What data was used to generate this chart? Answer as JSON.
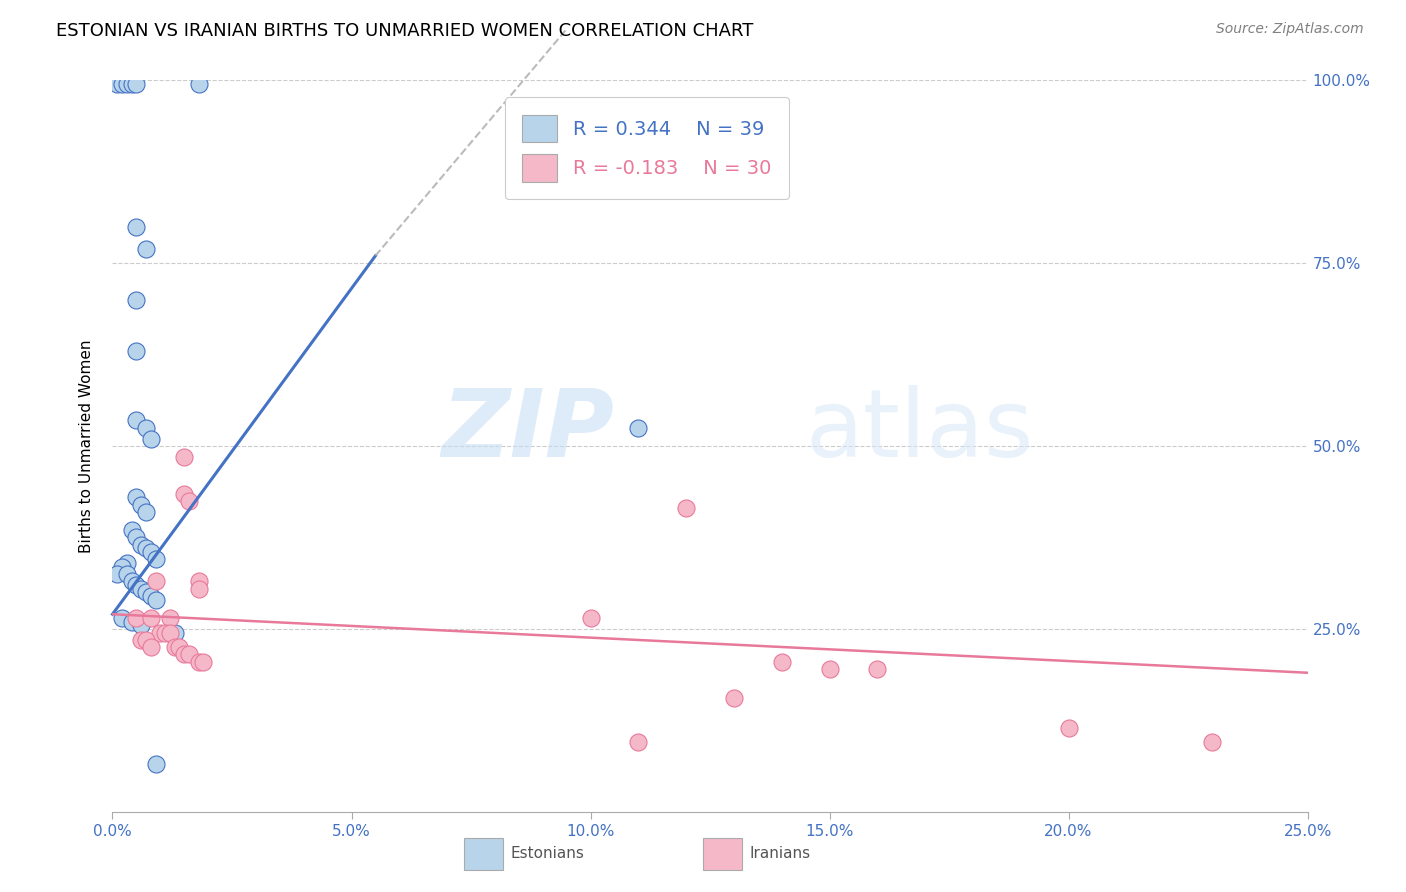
{
  "title": "ESTONIAN VS IRANIAN BIRTHS TO UNMARRIED WOMEN CORRELATION CHART",
  "source": "Source: ZipAtlas.com",
  "ylabel": "Births to Unmarried Women",
  "xlabel": "",
  "xlim": [
    0.0,
    0.25
  ],
  "ylim": [
    0.0,
    1.0
  ],
  "xtick_labels": [
    "0.0%",
    "5.0%",
    "10.0%",
    "15.0%",
    "20.0%",
    "25.0%"
  ],
  "xtick_vals": [
    0.0,
    0.05,
    0.1,
    0.15,
    0.2,
    0.25
  ],
  "ytick_labels": [
    "25.0%",
    "50.0%",
    "75.0%",
    "100.0%"
  ],
  "ytick_vals": [
    0.25,
    0.5,
    0.75,
    1.0
  ],
  "legend_r_estonian": "R = 0.344",
  "legend_n_estonian": "N = 39",
  "legend_r_iranian": "R = -0.183",
  "legend_n_iranian": "N = 30",
  "estonian_color": "#b8d4ea",
  "iranian_color": "#f5b8c8",
  "trendline_estonian_color": "#4472c4",
  "trendline_iranian_color": "#e8799a",
  "watermark_zip": "ZIP",
  "watermark_atlas": "atlas",
  "estonian_points": [
    [
      0.001,
      0.995
    ],
    [
      0.002,
      0.995
    ],
    [
      0.003,
      0.995
    ],
    [
      0.004,
      0.995
    ],
    [
      0.005,
      0.995
    ],
    [
      0.018,
      0.995
    ],
    [
      0.005,
      0.8
    ],
    [
      0.007,
      0.77
    ],
    [
      0.005,
      0.7
    ],
    [
      0.005,
      0.63
    ],
    [
      0.005,
      0.535
    ],
    [
      0.007,
      0.525
    ],
    [
      0.008,
      0.51
    ],
    [
      0.11,
      0.525
    ],
    [
      0.004,
      0.385
    ],
    [
      0.005,
      0.375
    ],
    [
      0.006,
      0.365
    ],
    [
      0.007,
      0.36
    ],
    [
      0.008,
      0.355
    ],
    [
      0.009,
      0.345
    ],
    [
      0.003,
      0.34
    ],
    [
      0.002,
      0.335
    ],
    [
      0.001,
      0.325
    ],
    [
      0.003,
      0.325
    ],
    [
      0.004,
      0.315
    ],
    [
      0.005,
      0.31
    ],
    [
      0.006,
      0.305
    ],
    [
      0.007,
      0.3
    ],
    [
      0.008,
      0.295
    ],
    [
      0.009,
      0.29
    ],
    [
      0.002,
      0.265
    ],
    [
      0.004,
      0.26
    ],
    [
      0.006,
      0.255
    ],
    [
      0.012,
      0.245
    ],
    [
      0.013,
      0.245
    ],
    [
      0.005,
      0.43
    ],
    [
      0.006,
      0.42
    ],
    [
      0.007,
      0.41
    ],
    [
      0.009,
      0.065
    ]
  ],
  "iranian_points": [
    [
      0.015,
      0.485
    ],
    [
      0.015,
      0.435
    ],
    [
      0.016,
      0.425
    ],
    [
      0.12,
      0.415
    ],
    [
      0.009,
      0.315
    ],
    [
      0.018,
      0.315
    ],
    [
      0.018,
      0.305
    ],
    [
      0.005,
      0.265
    ],
    [
      0.008,
      0.265
    ],
    [
      0.012,
      0.265
    ],
    [
      0.01,
      0.245
    ],
    [
      0.011,
      0.245
    ],
    [
      0.012,
      0.245
    ],
    [
      0.006,
      0.235
    ],
    [
      0.007,
      0.235
    ],
    [
      0.008,
      0.225
    ],
    [
      0.013,
      0.225
    ],
    [
      0.014,
      0.225
    ],
    [
      0.015,
      0.215
    ],
    [
      0.016,
      0.215
    ],
    [
      0.018,
      0.205
    ],
    [
      0.019,
      0.205
    ],
    [
      0.1,
      0.265
    ],
    [
      0.14,
      0.205
    ],
    [
      0.15,
      0.195
    ],
    [
      0.16,
      0.195
    ],
    [
      0.13,
      0.155
    ],
    [
      0.2,
      0.115
    ],
    [
      0.11,
      0.095
    ],
    [
      0.23,
      0.095
    ]
  ],
  "estonian_trendline_solid": [
    [
      0.0,
      0.27
    ],
    [
      0.055,
      0.76
    ]
  ],
  "estonian_trendline_dashed": [
    [
      0.055,
      0.76
    ],
    [
      0.095,
      1.07
    ]
  ],
  "iranian_trendline": [
    [
      0.0,
      0.27
    ],
    [
      0.25,
      0.19
    ]
  ],
  "grid_color": "#cccccc",
  "border_color": "#cccccc"
}
